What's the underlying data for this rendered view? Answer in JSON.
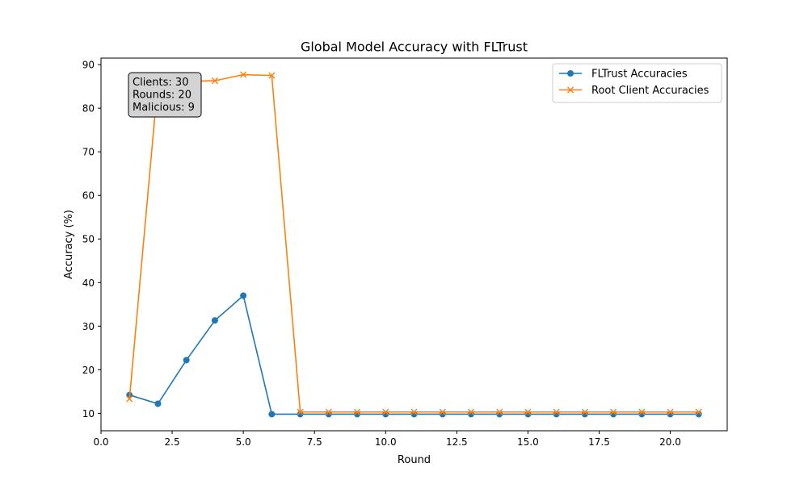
{
  "chart_data": {
    "type": "line",
    "title": "Global Model Accuracy with FLTrust",
    "xlabel": "Round",
    "ylabel": "Accuracy (%)",
    "xlim": [
      0.0,
      22.0
    ],
    "ylim": [
      6.0,
      91.5
    ],
    "x_ticks": [
      0.0,
      2.5,
      5.0,
      7.5,
      10.0,
      12.5,
      15.0,
      17.5,
      20.0
    ],
    "x_tick_labels": [
      "0.0",
      "2.5",
      "5.0",
      "7.5",
      "10.0",
      "12.5",
      "15.0",
      "17.5",
      "20.0"
    ],
    "y_ticks": [
      10,
      20,
      30,
      40,
      50,
      60,
      70,
      80,
      90
    ],
    "y_tick_labels": [
      "10",
      "20",
      "30",
      "40",
      "50",
      "60",
      "70",
      "80",
      "90"
    ],
    "grid": false,
    "legend_position": "top-right",
    "x": [
      1,
      2,
      3,
      4,
      5,
      6,
      7,
      8,
      9,
      10,
      11,
      12,
      13,
      14,
      15,
      16,
      17,
      18,
      19,
      20,
      21
    ],
    "series": [
      {
        "name": "FLTrust Accuracies",
        "color": "#1f77b4",
        "marker": "circle",
        "values": [
          14.2,
          12.2,
          22.2,
          31.3,
          37.0,
          9.8,
          9.8,
          9.8,
          9.8,
          9.8,
          9.8,
          9.8,
          9.8,
          9.8,
          9.8,
          9.8,
          9.8,
          9.8,
          9.8,
          9.8,
          9.8
        ]
      },
      {
        "name": "Root Client Accuracies",
        "color": "#ff7f0e",
        "marker": "x",
        "values": [
          13.3,
          86.0,
          86.2,
          86.3,
          87.7,
          87.5,
          10.3,
          10.3,
          10.3,
          10.3,
          10.3,
          10.3,
          10.3,
          10.3,
          10.3,
          10.3,
          10.3,
          10.3,
          10.3,
          10.3,
          10.3
        ]
      }
    ],
    "annotation": {
      "lines": [
        "Clients: 30",
        "Rounds: 20",
        "Malicious: 9"
      ],
      "box_color": "#d3d3d3"
    }
  }
}
